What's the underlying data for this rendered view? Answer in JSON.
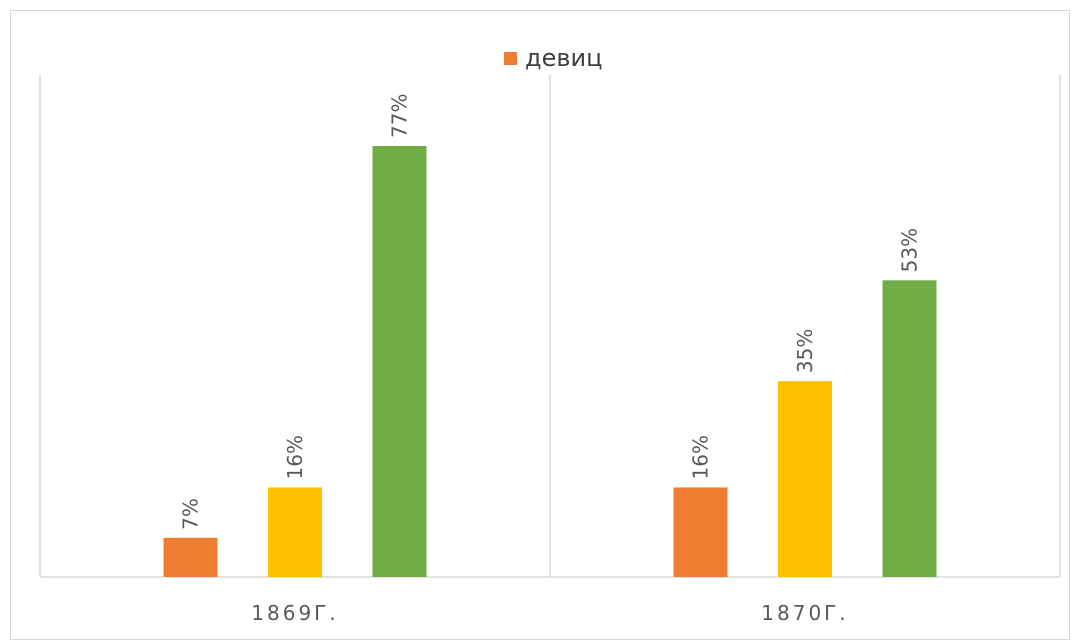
{
  "chart_data": {
    "type": "bar",
    "categories": [
      "1869Г.",
      "1870Г."
    ],
    "legend": [
      {
        "name": "девиц",
        "color": "#ED7D31"
      }
    ],
    "series": [
      {
        "values": [
          7,
          16
        ],
        "labels": [
          "7%",
          "16%"
        ],
        "color": "#ED7D31"
      },
      {
        "values": [
          16,
          35
        ],
        "labels": [
          "16%",
          "35%"
        ],
        "color": "#FFC000"
      },
      {
        "values": [
          77,
          53
        ],
        "labels": [
          "77%",
          "53%"
        ],
        "color": "#70AD47"
      }
    ],
    "ylim": [
      0,
      80
    ],
    "gridlines": false,
    "legend_position": "top",
    "category_dividers": true
  }
}
